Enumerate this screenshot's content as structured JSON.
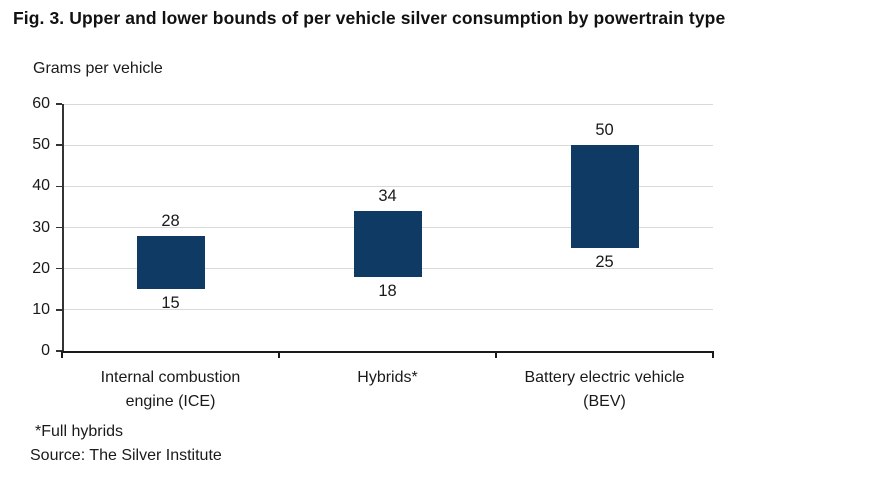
{
  "figure": {
    "title": "Fig. 3. Upper and lower bounds of per vehicle silver consumption by powertrain type",
    "units_label": "Grams per vehicle",
    "footnote": "*Full hybrids",
    "source": "Source: The Silver Institute"
  },
  "chart_data": {
    "type": "bar",
    "subtype": "floating_range_bars",
    "title": "Upper and lower bounds of per vehicle silver consumption by powertrain type",
    "ylabel": "Grams per vehicle",
    "categories": [
      "Internal combustion\nengine (ICE)",
      "Hybrids*",
      "Battery electric vehicle\n(BEV)"
    ],
    "series": [
      {
        "name": "Lower bound",
        "values": [
          15,
          18,
          25
        ]
      },
      {
        "name": "Upper bound",
        "values": [
          28,
          34,
          50
        ]
      }
    ],
    "ylim": [
      0,
      60
    ],
    "ytick_step": 10,
    "grid": true,
    "legend": false,
    "bar_color": "#0e3a64",
    "colors": {
      "grid": "#d9d9d9",
      "axis": "#1a1a1a",
      "text": "#1a1a1a"
    }
  }
}
